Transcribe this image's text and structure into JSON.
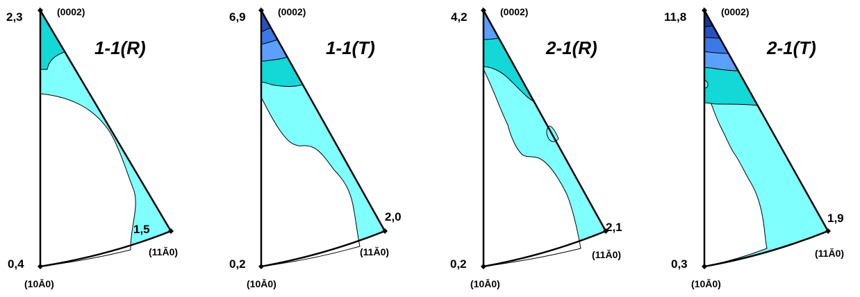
{
  "colors": {
    "background": "#ffffff",
    "outline": "#000000",
    "level_1": "#80ffff",
    "level_2": "#14d7d7",
    "level_3": "#5aa0ff",
    "level_4": "#3c78e6",
    "level_5": "#2850c0",
    "level_6": "#18349a"
  },
  "panels": [
    {
      "title": "1-1(R)",
      "label_top": "(0002)",
      "label_bottom_left": "(10Ā0)",
      "label_right": "(11Ă0)",
      "max_value": "2,3",
      "min_value": "0,4",
      "corner_value": "1,5"
    },
    {
      "title": "1-1(T)",
      "label_top": "(0002)",
      "label_bottom_left": "(10Ā0)",
      "label_right": "(11Ă0)",
      "max_value": "6,9",
      "min_value": "0,2",
      "corner_value": "2,0"
    },
    {
      "title": "2-1(R)",
      "label_top": "(0002)",
      "label_bottom_left": "(10Ā0)",
      "label_right": "(11Ă0)",
      "max_value": "4,2",
      "min_value": "0,2",
      "corner_value": "2,1"
    },
    {
      "title": "2-1(T)",
      "label_top": "(0002)",
      "label_bottom_left": "(10Ā0)",
      "label_right": "(11Ă0)",
      "max_value": "11,8",
      "min_value": "0,3",
      "corner_value": "1,9"
    }
  ]
}
